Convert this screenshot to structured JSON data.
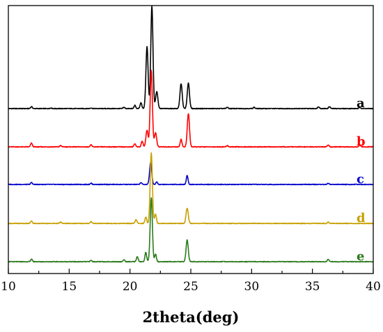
{
  "chart_data": {
    "type": "line",
    "title": "",
    "xlabel": "2theta(deg)",
    "ylabel": "",
    "xlim": [
      10,
      40
    ],
    "xticks": [
      10,
      15,
      20,
      25,
      30,
      35,
      40
    ],
    "y_tick_labels_shown": false,
    "grid": false,
    "legend": "none; each trace labelled at right end",
    "series": [
      {
        "label": "a",
        "color": "#000000",
        "baseline": 0,
        "peaks": [
          [
            11.9,
            3
          ],
          [
            13.5,
            1
          ],
          [
            16.8,
            1
          ],
          [
            19.5,
            2
          ],
          [
            20.4,
            5
          ],
          [
            20.9,
            9
          ],
          [
            21.4,
            97
          ],
          [
            21.8,
            160
          ],
          [
            22.2,
            27
          ],
          [
            24.2,
            39
          ],
          [
            24.8,
            40
          ],
          [
            28.0,
            2
          ],
          [
            30.2,
            2
          ],
          [
            35.5,
            3
          ],
          [
            36.4,
            3
          ],
          [
            38.9,
            2
          ]
        ]
      },
      {
        "label": "b",
        "color": "#ff0000",
        "baseline": 0,
        "peaks": [
          [
            11.9,
            6
          ],
          [
            14.3,
            2
          ],
          [
            16.8,
            3
          ],
          [
            20.4,
            5
          ],
          [
            21.0,
            9
          ],
          [
            21.4,
            26
          ],
          [
            21.75,
            120
          ],
          [
            22.1,
            22
          ],
          [
            24.2,
            12
          ],
          [
            24.8,
            52
          ],
          [
            28.0,
            2
          ],
          [
            36.3,
            3
          ],
          [
            38.9,
            3
          ]
        ]
      },
      {
        "label": "c",
        "color": "#0000cc",
        "baseline": 0,
        "peaks": [
          [
            11.9,
            3
          ],
          [
            16.8,
            2
          ],
          [
            20.9,
            3
          ],
          [
            21.7,
            34
          ],
          [
            22.2,
            4
          ],
          [
            24.7,
            14
          ],
          [
            36.3,
            2
          ]
        ]
      },
      {
        "label": "d",
        "color": "#c8a000",
        "baseline": 0,
        "peaks": [
          [
            11.9,
            4
          ],
          [
            14.3,
            2
          ],
          [
            16.8,
            3
          ],
          [
            20.5,
            6
          ],
          [
            21.3,
            10
          ],
          [
            21.75,
            110
          ],
          [
            22.1,
            15
          ],
          [
            24.7,
            24
          ],
          [
            36.3,
            2
          ]
        ]
      },
      {
        "label": "e",
        "color": "#2a7a1a",
        "baseline": 0,
        "peaks": [
          [
            11.9,
            4
          ],
          [
            16.8,
            2
          ],
          [
            19.5,
            3
          ],
          [
            20.6,
            8
          ],
          [
            21.3,
            15
          ],
          [
            21.75,
            100
          ],
          [
            22.1,
            12
          ],
          [
            24.7,
            34
          ],
          [
            36.3,
            4
          ]
        ]
      }
    ]
  }
}
